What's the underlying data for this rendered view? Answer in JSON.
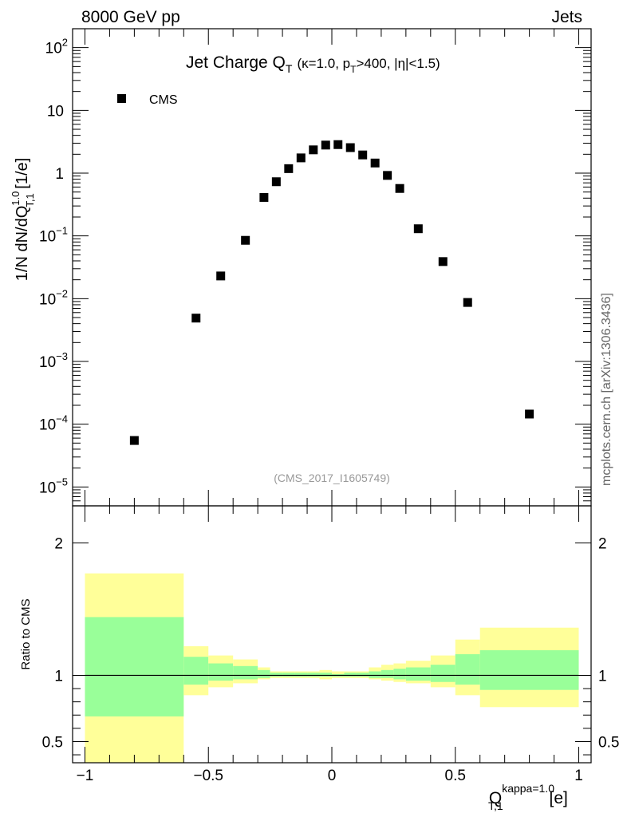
{
  "header": {
    "left": "8000 GeV pp",
    "right": "Jets"
  },
  "title": {
    "main": "Jet Charge Q",
    "main_sub": "T",
    "cuts_kappa": "(κ=1.0, p",
    "cuts_pt_sub": "T",
    "cuts_rest": ">400, |η|<1.5)"
  },
  "watermark": "(CMS_2017_I1605749)",
  "side_label": "mcplots.cern.ch [arXiv:1306.3436]",
  "legend": {
    "label": "CMS"
  },
  "ylabel_main": {
    "prefix": "1/N dN/dQ",
    "sup": "1.0",
    "sub": "T,1",
    "suffix": " [1/e]"
  },
  "ylabel_ratio": "Ratio to CMS",
  "xlabel": {
    "prefix": "Q",
    "sup": "kappa=1.0",
    "sub": "T,1",
    "suffix": " [e]"
  },
  "chart_data": [
    {
      "type": "scatter",
      "panel": "main",
      "yscale": "log",
      "xlim": [
        -1.05,
        1.05
      ],
      "ylim": [
        5e-06,
        200
      ],
      "ytick_labels": [
        {
          "mant": "10",
          "exp": "−5",
          "v": 1e-05
        },
        {
          "mant": "10",
          "exp": "−4",
          "v": 0.0001
        },
        {
          "mant": "10",
          "exp": "−3",
          "v": 0.001
        },
        {
          "mant": "10",
          "exp": "−2",
          "v": 0.01
        },
        {
          "mant": "10",
          "exp": "−1",
          "v": 0.1
        },
        {
          "mant": "1",
          "exp": "",
          "v": 1
        },
        {
          "mant": "10",
          "exp": "",
          "v": 10
        },
        {
          "mant": "10",
          "exp": "2",
          "v": 100
        }
      ],
      "series": [
        {
          "name": "CMS",
          "color": "#000000",
          "x": [
            -0.8,
            -0.55,
            -0.45,
            -0.35,
            -0.275,
            -0.225,
            -0.175,
            -0.125,
            -0.075,
            -0.025,
            0.025,
            0.075,
            0.125,
            0.175,
            0.225,
            0.275,
            0.35,
            0.45,
            0.55,
            0.8
          ],
          "y": [
            5.5e-05,
            0.0049,
            0.023,
            0.085,
            0.41,
            0.73,
            1.18,
            1.75,
            2.35,
            2.8,
            2.85,
            2.55,
            1.95,
            1.45,
            0.92,
            0.57,
            0.13,
            0.039,
            0.0087,
            0.000145
          ]
        }
      ]
    },
    {
      "type": "area",
      "panel": "ratio",
      "xlim": [
        -1.05,
        1.05
      ],
      "ylim": [
        0.34,
        2.28
      ],
      "yticks": [
        0.5,
        1,
        2
      ],
      "ytick_labels": [
        "0.5",
        "1",
        "2"
      ],
      "xticks": [
        -1,
        -0.5,
        0,
        0.5,
        1
      ],
      "xtick_labels": [
        "−1",
        "−0.5",
        "0",
        "0.5",
        "1"
      ],
      "reference_line": 1.0,
      "colors": {
        "outer_band": "#ffff99",
        "inner_band": "#99ff99"
      },
      "bins": [
        {
          "x0": -1.0,
          "x1": -0.6,
          "outer_lo": 0.34,
          "outer_hi": 1.77,
          "inner_lo": 0.69,
          "inner_hi": 1.44
        },
        {
          "x0": -0.6,
          "x1": -0.5,
          "outer_lo": 0.85,
          "outer_hi": 1.22,
          "inner_lo": 0.93,
          "inner_hi": 1.14
        },
        {
          "x0": -0.5,
          "x1": -0.4,
          "outer_lo": 0.91,
          "outer_hi": 1.15,
          "inner_lo": 0.96,
          "inner_hi": 1.09
        },
        {
          "x0": -0.4,
          "x1": -0.3,
          "outer_lo": 0.94,
          "outer_hi": 1.12,
          "inner_lo": 0.97,
          "inner_hi": 1.07
        },
        {
          "x0": -0.3,
          "x1": -0.25,
          "outer_lo": 0.97,
          "outer_hi": 1.06,
          "inner_lo": 0.98,
          "inner_hi": 1.04
        },
        {
          "x0": -0.25,
          "x1": -0.2,
          "outer_lo": 0.98,
          "outer_hi": 1.03,
          "inner_lo": 0.99,
          "inner_hi": 1.02
        },
        {
          "x0": -0.2,
          "x1": -0.15,
          "outer_lo": 0.98,
          "outer_hi": 1.03,
          "inner_lo": 0.99,
          "inner_hi": 1.02
        },
        {
          "x0": -0.15,
          "x1": -0.1,
          "outer_lo": 0.98,
          "outer_hi": 1.03,
          "inner_lo": 0.99,
          "inner_hi": 1.02
        },
        {
          "x0": -0.1,
          "x1": -0.05,
          "outer_lo": 0.98,
          "outer_hi": 1.03,
          "inner_lo": 0.99,
          "inner_hi": 1.02
        },
        {
          "x0": -0.05,
          "x1": 0.0,
          "outer_lo": 0.97,
          "outer_hi": 1.04,
          "inner_lo": 0.99,
          "inner_hi": 1.02
        },
        {
          "x0": 0.0,
          "x1": 0.05,
          "outer_lo": 0.98,
          "outer_hi": 1.03,
          "inner_lo": 0.99,
          "inner_hi": 1.01
        },
        {
          "x0": 0.05,
          "x1": 0.1,
          "outer_lo": 0.98,
          "outer_hi": 1.03,
          "inner_lo": 0.99,
          "inner_hi": 1.02
        },
        {
          "x0": 0.1,
          "x1": 0.15,
          "outer_lo": 0.98,
          "outer_hi": 1.03,
          "inner_lo": 0.99,
          "inner_hi": 1.02
        },
        {
          "x0": 0.15,
          "x1": 0.2,
          "outer_lo": 0.97,
          "outer_hi": 1.06,
          "inner_lo": 0.98,
          "inner_hi": 1.03
        },
        {
          "x0": 0.2,
          "x1": 0.25,
          "outer_lo": 0.96,
          "outer_hi": 1.08,
          "inner_lo": 0.98,
          "inner_hi": 1.04
        },
        {
          "x0": 0.25,
          "x1": 0.3,
          "outer_lo": 0.95,
          "outer_hi": 1.09,
          "inner_lo": 0.97,
          "inner_hi": 1.05
        },
        {
          "x0": 0.3,
          "x1": 0.4,
          "outer_lo": 0.94,
          "outer_hi": 1.11,
          "inner_lo": 0.96,
          "inner_hi": 1.06
        },
        {
          "x0": 0.4,
          "x1": 0.5,
          "outer_lo": 0.91,
          "outer_hi": 1.15,
          "inner_lo": 0.95,
          "inner_hi": 1.08
        },
        {
          "x0": 0.5,
          "x1": 0.6,
          "outer_lo": 0.85,
          "outer_hi": 1.27,
          "inner_lo": 0.93,
          "inner_hi": 1.16
        },
        {
          "x0": 0.6,
          "x1": 1.0,
          "outer_lo": 0.76,
          "outer_hi": 1.36,
          "inner_lo": 0.89,
          "inner_hi": 1.19
        }
      ]
    }
  ]
}
